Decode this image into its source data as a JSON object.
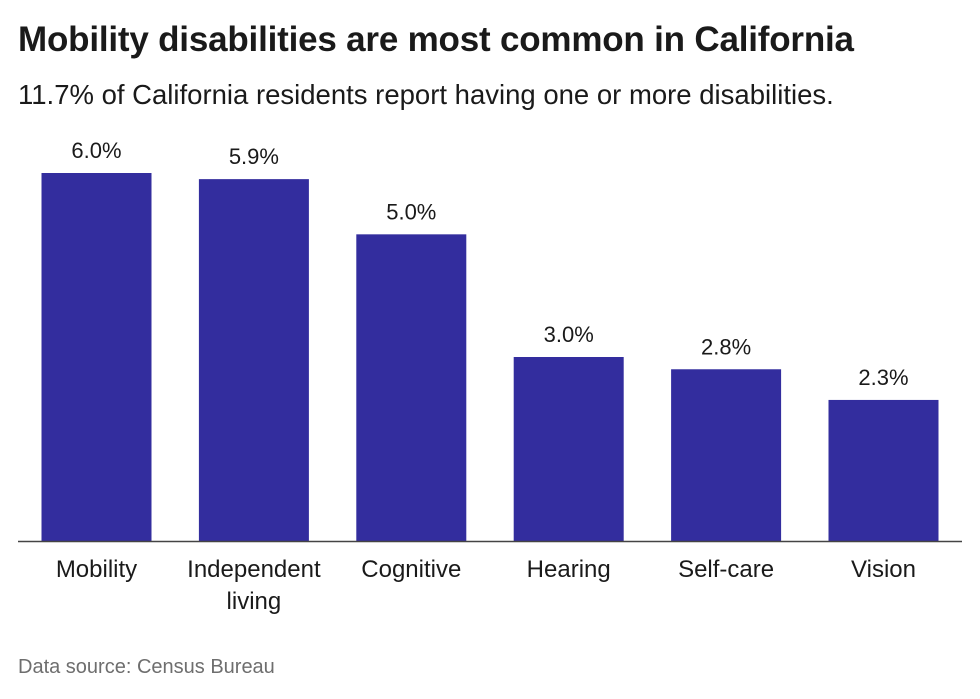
{
  "title": "Mobility disabilities are most common in California",
  "subtitle": "11.7% of California residents report having one or more disabilities.",
  "source": "Data source: Census Bureau",
  "colors": {
    "bar": "#332d9e",
    "axis": "#444444",
    "text": "#1a1a1a"
  },
  "chart_data": {
    "type": "bar",
    "categories": [
      [
        "Mobility"
      ],
      [
        "Independent",
        "living"
      ],
      [
        "Cognitive"
      ],
      [
        "Hearing"
      ],
      [
        "Self-care"
      ],
      [
        "Vision"
      ]
    ],
    "values": [
      6.0,
      5.9,
      5.0,
      3.0,
      2.8,
      2.3
    ],
    "data_labels": [
      "6.0%",
      "5.9%",
      "5.0%",
      "3.0%",
      "2.8%",
      "2.3%"
    ],
    "ylim": [
      0,
      6.0
    ],
    "grid": false,
    "legend": "none"
  }
}
